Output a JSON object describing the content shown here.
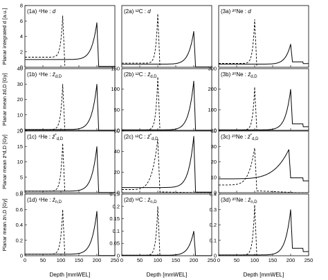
{
  "figure": {
    "x_axis_label": "Depth [mmWEL]",
    "row_ylabels": [
      "Planar integrated d [a.u.]",
      "Planar mean z̄d,D [Gy]",
      "Planar mean z̄*d,D [Gy]",
      "Planar mean z̄n,D [Gy]"
    ]
  },
  "chart_data": [
    {
      "id": "1a",
      "type": "line",
      "ion": "⁴He",
      "quantity": "d",
      "label_prefix": "(1a) ",
      "label_sym": "d",
      "label_sub": "",
      "label_star": false,
      "xlim": [
        0,
        250
      ],
      "ylim": [
        0,
        8
      ],
      "yticks": [
        0,
        2,
        4,
        6,
        8
      ],
      "xticks": [
        0,
        50,
        100,
        150,
        200,
        250
      ],
      "style": "alpha",
      "peak": 200,
      "base_solid": 1,
      "peak_solid": 5.8,
      "base_dash": 1.3,
      "peak_dash": 6.7,
      "dash_stop": 105
    },
    {
      "id": "2a",
      "type": "line",
      "ion": "¹²C",
      "quantity": "d",
      "label_prefix": "(2a) ",
      "label_sym": "d",
      "label_sub": "",
      "label_star": false,
      "xlim": [
        0,
        250
      ],
      "ylim": [
        0,
        6
      ],
      "yticks": [],
      "xticks": [
        0,
        50,
        100,
        150,
        200,
        250
      ],
      "style": "carbon",
      "peak": 200,
      "base_solid": 0.3,
      "peak_solid": 3.5,
      "base_dash": 0.4,
      "peak_dash": 5.2,
      "dash_stop": 100
    },
    {
      "id": "3a",
      "type": "line",
      "ion": "²⁰Ne",
      "quantity": "d",
      "label_prefix": "(3a) ",
      "label_sym": "d",
      "label_sub": "",
      "label_star": false,
      "xlim": [
        0,
        250
      ],
      "ylim": [
        0,
        8
      ],
      "yticks": [],
      "xticks": [
        0,
        50,
        100,
        150,
        200,
        250
      ],
      "style": "neon",
      "peak": 200,
      "base_solid": 0.4,
      "peak_solid": 3.0,
      "base_dash": 0.5,
      "peak_dash": 6.2,
      "dash_stop": 100
    },
    {
      "id": "1b",
      "type": "line",
      "ion": "⁴He",
      "quantity": "z̄d,D",
      "label_prefix": "(1b) ",
      "label_sym": "z̄",
      "label_sub": "d,D",
      "label_star": false,
      "xlim": [
        0,
        250
      ],
      "ylim": [
        0,
        40
      ],
      "yticks": [
        0,
        10,
        20,
        30,
        40
      ],
      "xticks": [
        0,
        50,
        100,
        150,
        200,
        250
      ],
      "style": "alpha",
      "peak": 200,
      "base_solid": 0.5,
      "peak_solid": 30,
      "base_dash": 0.5,
      "peak_dash": 30,
      "dash_stop": 105
    },
    {
      "id": "2b",
      "type": "line",
      "ion": "¹²C",
      "quantity": "z̄d,D",
      "label_prefix": "(2b) ",
      "label_sym": "z̄",
      "label_sub": "d,D",
      "label_star": false,
      "xlim": [
        0,
        250
      ],
      "ylim": [
        0,
        150
      ],
      "yticks": [
        0,
        50,
        100,
        150
      ],
      "xticks": [
        0,
        50,
        100,
        150,
        200,
        250
      ],
      "style": "carbon",
      "peak": 200,
      "base_solid": 1,
      "peak_solid": 120,
      "base_dash": 1,
      "peak_dash": 130,
      "dash_stop": 100
    },
    {
      "id": "3b",
      "type": "line",
      "ion": "²⁰Ne",
      "quantity": "z̄d,D",
      "label_prefix": "(3b) ",
      "label_sym": "z̄",
      "label_sub": "d,D",
      "label_star": false,
      "xlim": [
        0,
        250
      ],
      "ylim": [
        0,
        300
      ],
      "yticks": [
        0,
        100,
        200,
        300
      ],
      "xticks": [
        0,
        50,
        100,
        150,
        200,
        250
      ],
      "style": "neon",
      "peak": 200,
      "base_solid": 2,
      "peak_solid": 200,
      "base_dash": 2,
      "peak_dash": 210,
      "dash_stop": 100
    },
    {
      "id": "1c",
      "type": "line",
      "ion": "⁴He",
      "quantity": "z̄*d,D",
      "label_prefix": "(1c) ",
      "label_sym": "z̄",
      "label_sub": "d,D",
      "label_star": true,
      "xlim": [
        0,
        250
      ],
      "ylim": [
        0,
        20
      ],
      "yticks": [
        0,
        5,
        10,
        15,
        20
      ],
      "xticks": [
        0,
        50,
        100,
        150,
        200,
        250
      ],
      "style": "alpha",
      "peak": 200,
      "base_solid": 0.5,
      "peak_solid": 15,
      "base_dash": 0.5,
      "peak_dash": 16,
      "dash_stop": 105
    },
    {
      "id": "2c",
      "type": "line",
      "ion": "¹²C",
      "quantity": "z̄*d,D",
      "label_prefix": "(2c) ",
      "label_sym": "z̄",
      "label_sub": "d,D",
      "label_star": true,
      "xlim": [
        0,
        250
      ],
      "ylim": [
        0,
        60
      ],
      "yticks": [
        0,
        20,
        40,
        60
      ],
      "xticks": [
        0,
        50,
        100,
        150,
        200,
        250
      ],
      "style": "carbon_c",
      "peak": 200,
      "base_solid": 5,
      "peak_solid": 55,
      "base_dash": 3,
      "peak_dash": 52,
      "dash_stop": 100
    },
    {
      "id": "3c",
      "type": "line",
      "ion": "²⁰Ne",
      "quantity": "z̄*d,D",
      "label_prefix": "(3c) ",
      "label_sym": "z̄",
      "label_sub": "d,D",
      "label_star": true,
      "xlim": [
        0,
        250
      ],
      "ylim": [
        0,
        40
      ],
      "yticks": [
        0,
        10,
        20,
        30,
        40
      ],
      "xticks": [
        0,
        50,
        100,
        150,
        200,
        250
      ],
      "style": "neon_c",
      "peak": 195,
      "base_solid": 9,
      "peak_solid": 28,
      "base_dash": 5,
      "peak_dash": 29,
      "dash_stop": 100
    },
    {
      "id": "1d",
      "type": "line",
      "ion": "⁴He",
      "quantity": "z̄n,D",
      "label_prefix": "(1d) ",
      "label_sym": "z̄",
      "label_sub": "n,D",
      "label_star": false,
      "xlim": [
        0,
        250
      ],
      "ylim": [
        0,
        0.8
      ],
      "yticks": [
        0,
        0.2,
        0.4,
        0.6,
        0.8
      ],
      "xticks": [
        0,
        50,
        100,
        150,
        200,
        250
      ],
      "style": "alpha",
      "peak": 200,
      "base_solid": 0.02,
      "peak_solid": 0.58,
      "base_dash": 0.02,
      "peak_dash": 0.6,
      "dash_stop": 105
    },
    {
      "id": "2d",
      "type": "line",
      "ion": "¹²C",
      "quantity": "z̄n,D",
      "label_prefix": "(2d) ",
      "label_sym": "z̄",
      "label_sub": "n,D",
      "label_star": false,
      "xlim": [
        0,
        250
      ],
      "ylim": [
        0,
        0.25
      ],
      "yticks": [
        0,
        0.05,
        0.1,
        0.15,
        0.2,
        0.25
      ],
      "xticks": [
        0,
        50,
        100,
        150,
        200,
        250
      ],
      "style": "carbon",
      "peak": 200,
      "base_solid": 0.002,
      "peak_solid": 0.1,
      "base_dash": 0.002,
      "peak_dash": 0.2,
      "dash_stop": 100
    },
    {
      "id": "3d",
      "type": "line",
      "ion": "²⁰Ne",
      "quantity": "z̄n,D",
      "label_prefix": "(3d) ",
      "label_sym": "z̄",
      "label_sub": "n,D",
      "label_star": false,
      "xlim": [
        0,
        250
      ],
      "ylim": [
        0,
        0.4
      ],
      "yticks": [
        0,
        0.1,
        0.2,
        0.3,
        0.4
      ],
      "xticks": [
        0,
        50,
        100,
        150,
        200,
        250
      ],
      "style": "neon",
      "peak": 200,
      "base_solid": 0.005,
      "peak_solid": 0.3,
      "base_dash": 0.005,
      "peak_dash": 0.33,
      "dash_stop": 100
    }
  ]
}
